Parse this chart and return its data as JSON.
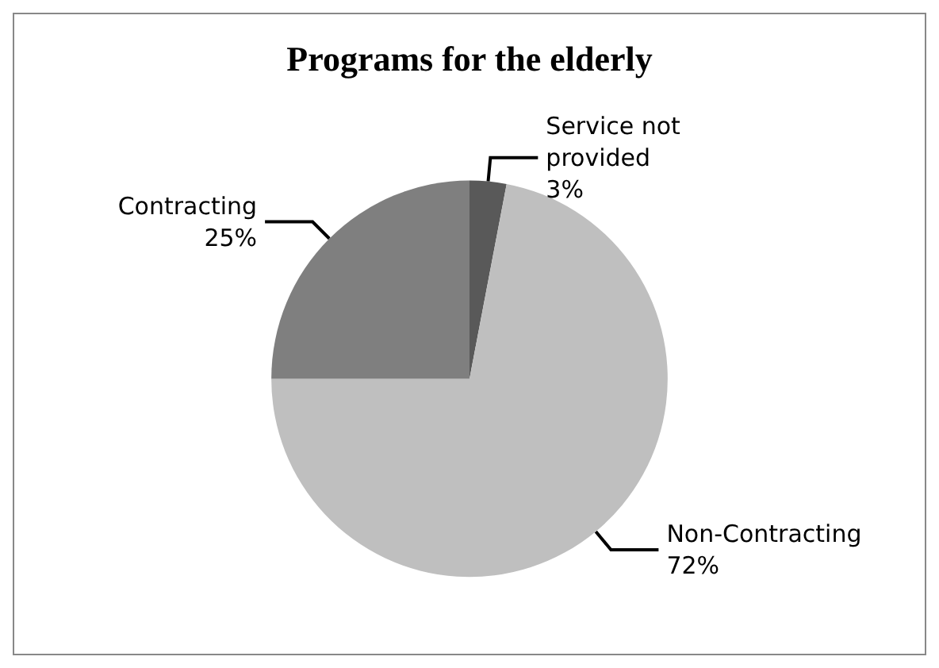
{
  "chart_data": {
    "type": "pie",
    "title": "Programs for the elderly",
    "categories": [
      "Service not provided",
      "Non-Contracting",
      "Contracting"
    ],
    "values": [
      3,
      72,
      25
    ],
    "colors": [
      "#595959",
      "#bfbfbf",
      "#7f7f7f"
    ],
    "value_labels": [
      "3%",
      "72%",
      "25%"
    ],
    "legend": false
  }
}
